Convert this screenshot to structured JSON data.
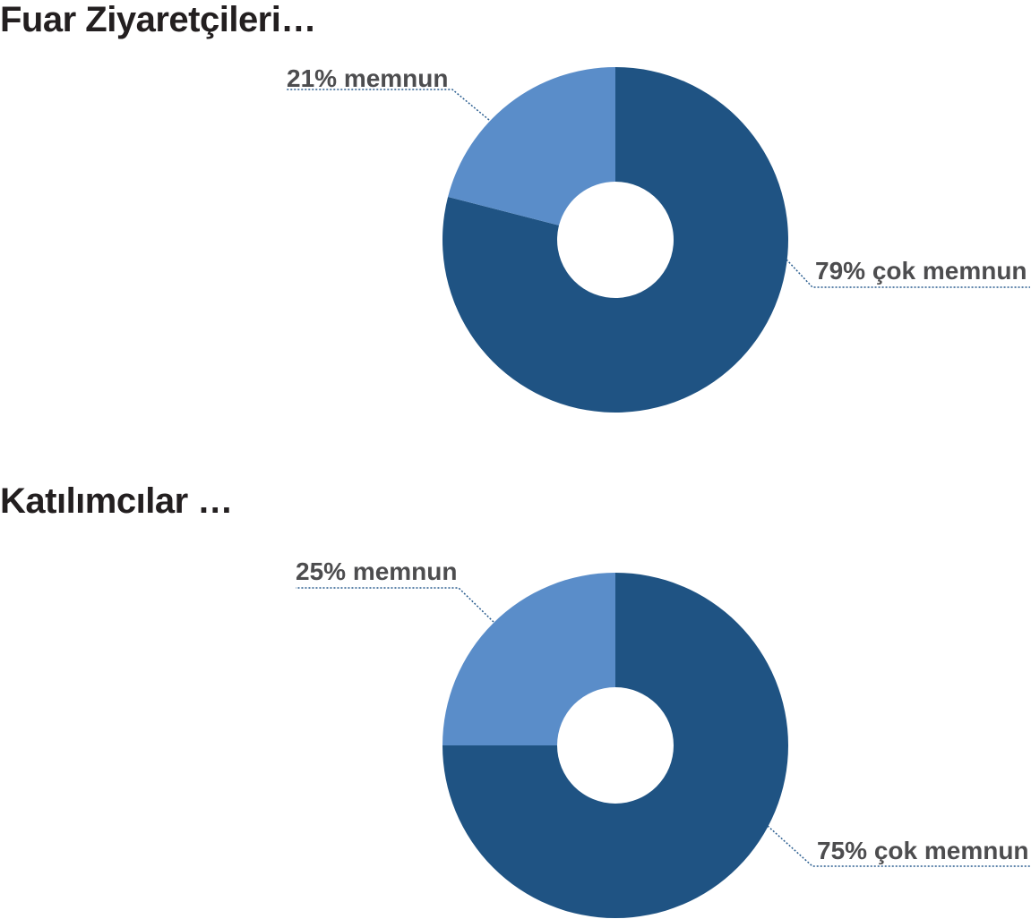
{
  "chart_data": [
    {
      "type": "pie",
      "title": "Fuar Ziyaretçileri…",
      "slices": [
        {
          "label": "79% çok memnun",
          "value": 79,
          "color": "#1f5383"
        },
        {
          "label": "21% memnun",
          "value": 21,
          "color": "#5a8dc9"
        }
      ],
      "legend": "none"
    },
    {
      "type": "pie",
      "title": "Katılımcılar …",
      "slices": [
        {
          "label": "75% çok memnun",
          "value": 75,
          "color": "#1f5383"
        },
        {
          "label": "25% memnun",
          "value": 25,
          "color": "#5a8dc9"
        }
      ],
      "legend": "none"
    }
  ]
}
